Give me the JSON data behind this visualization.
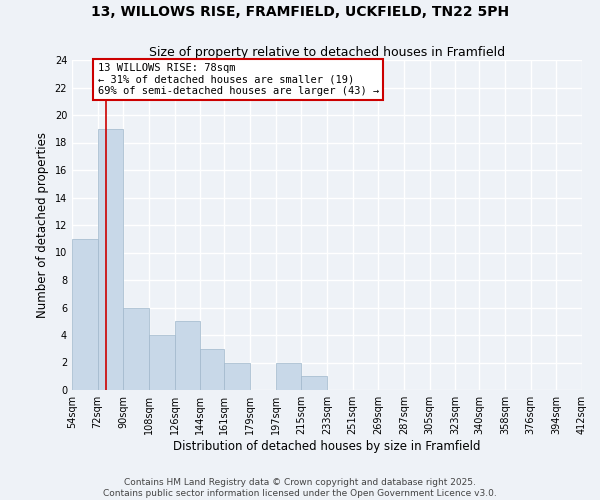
{
  "title_line1": "13, WILLOWS RISE, FRAMFIELD, UCKFIELD, TN22 5PH",
  "title_line2": "Size of property relative to detached houses in Framfield",
  "xlabel": "Distribution of detached houses by size in Framfield",
  "ylabel": "Number of detached properties",
  "bin_edges": [
    54,
    72,
    90,
    108,
    126,
    144,
    161,
    179,
    197,
    215,
    233,
    251,
    269,
    287,
    305,
    323,
    340,
    358,
    376,
    394,
    412
  ],
  "bar_heights": [
    11,
    19,
    6,
    4,
    5,
    3,
    2,
    0,
    2,
    1,
    0,
    0,
    0,
    0,
    0,
    0,
    0,
    0,
    0,
    0
  ],
  "bar_color": "#c8d8e8",
  "bar_edgecolor": "#a0b8cc",
  "bar_linewidth": 0.5,
  "ylim": [
    0,
    24
  ],
  "yticks": [
    0,
    2,
    4,
    6,
    8,
    10,
    12,
    14,
    16,
    18,
    20,
    22,
    24
  ],
  "red_line_x": 78,
  "red_line_color": "#cc0000",
  "annotation_text": "13 WILLOWS RISE: 78sqm\n← 31% of detached houses are smaller (19)\n69% of semi-detached houses are larger (43) →",
  "background_color": "#eef2f7",
  "plot_background": "#eef2f7",
  "grid_color": "#ffffff",
  "footer_line1": "Contains HM Land Registry data © Crown copyright and database right 2025.",
  "footer_line2": "Contains public sector information licensed under the Open Government Licence v3.0.",
  "title_fontsize": 10,
  "subtitle_fontsize": 9,
  "axis_label_fontsize": 8.5,
  "tick_fontsize": 7,
  "annotation_fontsize": 7.5,
  "footer_fontsize": 6.5
}
